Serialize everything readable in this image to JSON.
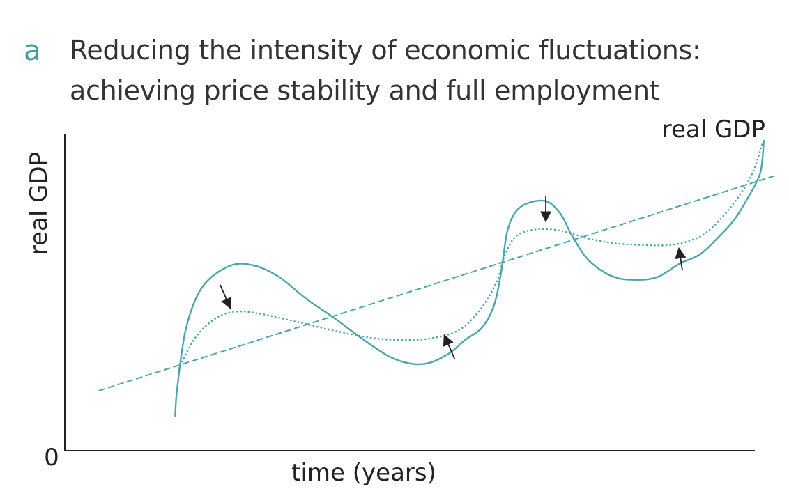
{
  "panel_letter": "a",
  "title_lines": [
    "Reducing the intensity of economic fluctuations:",
    "achieving price stability and full employment"
  ],
  "colors": {
    "curve": "#4aa6ae",
    "axis": "#222222",
    "arrow": "#222222",
    "letter": "#3f9ba6"
  },
  "chart_data": {
    "type": "line",
    "title": "Reducing the intensity of economic fluctuations: achieving price stability and full employment",
    "xlabel": "time (years)",
    "ylabel": "real GDP",
    "origin_label": "0",
    "line_label": "real GDP",
    "xlim": [
      0,
      100
    ],
    "ylim": [
      0,
      100
    ],
    "grid": false,
    "legend": "none",
    "series": [
      {
        "style": "dashed",
        "x": [
          5,
          103
        ],
        "y": [
          19,
          87
        ]
      },
      {
        "style": "solid",
        "x": [
          16,
          16.3,
          17.6,
          20,
          24,
          27.5,
          31,
          35,
          39,
          44,
          48,
          52,
          55.5,
          58,
          60.5,
          62.2,
          63.2,
          64.2,
          66,
          69.5,
          71.8,
          73.5,
          76,
          79.5,
          83,
          86,
          89,
          92,
          94.5,
          97,
          99,
          100.8,
          101.3
        ],
        "y": [
          11,
          20,
          39,
          52,
          58.5,
          58.5,
          55,
          48,
          42,
          34,
          28.8,
          27.4,
          30.5,
          35,
          39,
          46,
          56,
          70,
          77,
          79,
          75,
          68,
          60,
          55,
          54,
          55,
          59,
          62,
          67,
          73,
          80,
          88,
          98
        ]
      },
      {
        "style": "dotted",
        "x": [
          16.5,
          19,
          22,
          25,
          29,
          34,
          40,
          45,
          49,
          53,
          57,
          60,
          62.5,
          63.8,
          65.5,
          68.5,
          72,
          76,
          80,
          84,
          87.5,
          90,
          93,
          96.5,
          99.5,
          101.2
        ],
        "y": [
          26,
          36,
          42,
          44,
          43,
          40.5,
          37.5,
          35.5,
          35,
          35.5,
          38,
          44,
          53,
          62,
          68,
          70,
          69.5,
          67,
          65.5,
          65,
          65,
          66,
          69,
          77,
          87,
          98
        ]
      }
    ],
    "annotations": [
      {
        "type": "arrow",
        "from": [
          22.5,
          52.5
        ],
        "to": [
          24,
          45
        ],
        "meaning": "reduce peak"
      },
      {
        "type": "arrow",
        "from": [
          56.5,
          29
        ],
        "to": [
          55,
          36.5
        ],
        "meaning": "raise trough"
      },
      {
        "type": "arrow",
        "from": [
          69.7,
          80.5
        ],
        "to": [
          69.7,
          72.5
        ],
        "meaning": "reduce peak"
      },
      {
        "type": "arrow",
        "from": [
          89.5,
          57
        ],
        "to": [
          89,
          64
        ],
        "meaning": "raise trough"
      }
    ]
  }
}
